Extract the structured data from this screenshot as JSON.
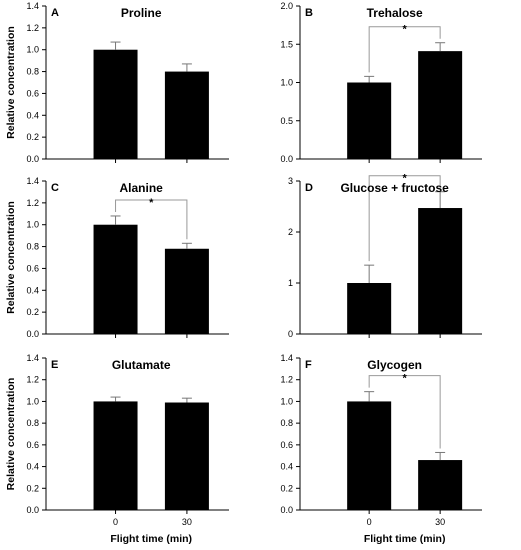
{
  "figure": {
    "ylabel": "Relative concentration",
    "xlabel": "Flight time (min)"
  },
  "chart_data": [
    {
      "type": "bar",
      "letter": "A",
      "title": "Proline",
      "categories": [
        "0",
        "30"
      ],
      "values": [
        1.0,
        0.8
      ],
      "errors": [
        0.07,
        0.07
      ],
      "ylim": [
        0,
        1.4
      ],
      "yticks": [
        "0.0",
        "0.2",
        "0.4",
        "0.6",
        "0.8",
        "1.0",
        "1.2",
        "1.4"
      ],
      "significance": "",
      "xlabel": "",
      "ylabel": "Relative concentration"
    },
    {
      "type": "bar",
      "letter": "B",
      "title": "Trehalose",
      "categories": [
        "0",
        "30"
      ],
      "values": [
        1.0,
        1.41
      ],
      "errors": [
        0.08,
        0.11
      ],
      "ylim": [
        0,
        2.0
      ],
      "yticks": [
        "0.0",
        "0.5",
        "1.0",
        "1.5",
        "2.0"
      ],
      "significance": "*",
      "xlabel": "",
      "ylabel": ""
    },
    {
      "type": "bar",
      "letter": "C",
      "title": "Alanine",
      "categories": [
        "0",
        "30"
      ],
      "values": [
        1.0,
        0.78
      ],
      "errors": [
        0.08,
        0.05
      ],
      "ylim": [
        0,
        1.4
      ],
      "yticks": [
        "0.0",
        "0.2",
        "0.4",
        "0.6",
        "0.8",
        "1.0",
        "1.2",
        "1.4"
      ],
      "significance": "*",
      "xlabel": "",
      "ylabel": "Relative concentration"
    },
    {
      "type": "bar",
      "letter": "D",
      "title": "Glucose + fructose",
      "categories": [
        "0",
        "30"
      ],
      "values": [
        1.0,
        2.47
      ],
      "errors": [
        0.35,
        0.32
      ],
      "ylim": [
        0,
        3
      ],
      "yticks": [
        "0",
        "1",
        "2",
        "3"
      ],
      "significance": "*",
      "xlabel": "",
      "ylabel": ""
    },
    {
      "type": "bar",
      "letter": "E",
      "title": "Glutamate",
      "categories": [
        "0",
        "30"
      ],
      "values": [
        1.0,
        0.99
      ],
      "errors": [
        0.04,
        0.04
      ],
      "ylim": [
        0,
        1.4
      ],
      "yticks": [
        "0.0",
        "0.2",
        "0.4",
        "0.6",
        "0.8",
        "1.0",
        "1.2",
        "1.4"
      ],
      "significance": "",
      "xlabel": "Flight time (min)",
      "ylabel": "Relative concentration"
    },
    {
      "type": "bar",
      "letter": "F",
      "title": "Glycogen",
      "categories": [
        "0",
        "30"
      ],
      "values": [
        1.0,
        0.46
      ],
      "errors": [
        0.09,
        0.07
      ],
      "ylim": [
        0,
        1.4
      ],
      "yticks": [
        "0.0",
        "0.2",
        "0.4",
        "0.6",
        "0.8",
        "1.0",
        "1.2",
        "1.4"
      ],
      "significance": "*",
      "xlabel": "Flight time (min)",
      "ylabel": ""
    }
  ]
}
